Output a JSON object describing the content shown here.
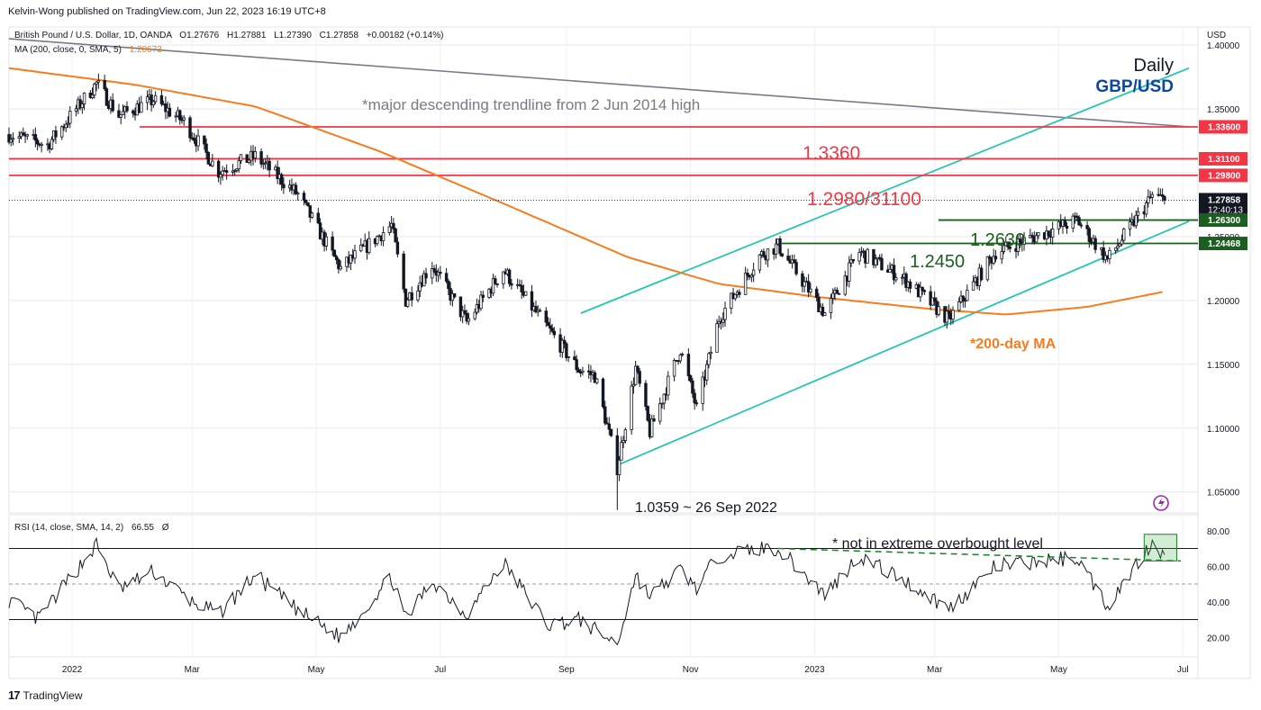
{
  "header": {
    "published_by": "Kelvin-Wong published on TradingView.com, Jun 22, 2023 16:19 UTC+8",
    "symbol_line": "British Pound / U.S. Dollar, 1D, OANDA",
    "ohlc": {
      "o": "O1.27676",
      "h": "H1.27881",
      "l": "L1.27390",
      "c": "C1.27858",
      "chg": "+0.00182 (+0.14%)"
    },
    "ma_line": "MA (200, close, 0, SMA, 5)",
    "ma_value": "1.20673",
    "currency": "USD"
  },
  "footer": {
    "brand": "TradingView",
    "logo_glyph": "17"
  },
  "colors": {
    "up": "#ffffff",
    "down": "#131722",
    "ma": "#f57c1f",
    "resistance": "#f23645",
    "support": "#1b5e20",
    "channel": "#26c6b0",
    "trendline": "#787b86",
    "rsi": "#131722",
    "price_tag": "#131722",
    "grid": "#e6e7eb",
    "annotation_red": "#f23645",
    "annotation_blue": "#0d47a1"
  },
  "chart_data": [
    {
      "type": "candlestick",
      "title": "Daily",
      "subtitle": "GBP/USD",
      "y_axis_labels": [
        "1.40000",
        "1.35000",
        "1.30000",
        "1.25000",
        "1.20000",
        "1.15000",
        "1.10000",
        "1.05000"
      ],
      "ylim": [
        1.035,
        1.41
      ],
      "x_axis_labels": [
        "2022",
        "Mar",
        "May",
        "Jul",
        "Sep",
        "Nov",
        "2023",
        "Mar",
        "May",
        "Jul"
      ],
      "price_tags": [
        {
          "label": "1.33600",
          "value": 1.336,
          "color": "#f23645"
        },
        {
          "label": "1.31100",
          "value": 1.311,
          "color": "#f23645"
        },
        {
          "label": "1.29800",
          "value": 1.298,
          "color": "#f23645"
        },
        {
          "label": "1.27858",
          "value": 1.27858,
          "color": "#131722",
          "sub": "12:40:13"
        },
        {
          "label": "1.26300",
          "value": 1.263,
          "color": "#1b5e20"
        },
        {
          "label": "1.24468",
          "value": 1.24468,
          "color": "#1b5e20"
        }
      ],
      "levels": [
        {
          "name": "resistance-1.3360",
          "value": 1.336,
          "label": "1.3360",
          "color": "#f23645"
        },
        {
          "name": "resistance-1.3110",
          "value": 1.311,
          "label": "",
          "color": "#f23645"
        },
        {
          "name": "resistance-1.2980",
          "value": 1.298,
          "label": "1.2980/31100",
          "color": "#f23645"
        },
        {
          "name": "support-1.2630",
          "value": 1.263,
          "label": "1.2630",
          "color": "#1b5e20"
        },
        {
          "name": "support-1.2450",
          "value": 1.2447,
          "label": "1.2450",
          "color": "#1b5e20"
        }
      ],
      "annotations": [
        {
          "text": "*major descending trendline from 2 Jun 2014 high",
          "color": "#787b86"
        },
        {
          "text": "*200-day MA",
          "color": "#f57c1f"
        },
        {
          "text": "1.0359 ~ 26 Sep 2022",
          "color": "#131722"
        }
      ],
      "anchor_points": [
        {
          "date": "2021-12-01",
          "close": 1.33
        },
        {
          "date": "2021-12-20",
          "close": 1.322
        },
        {
          "date": "2022-01-13",
          "close": 1.37
        },
        {
          "date": "2022-01-24",
          "close": 1.345
        },
        {
          "date": "2022-02-10",
          "close": 1.357
        },
        {
          "date": "2022-02-25",
          "close": 1.34
        },
        {
          "date": "2022-03-14",
          "close": 1.301
        },
        {
          "date": "2022-04-01",
          "close": 1.313
        },
        {
          "date": "2022-04-22",
          "close": 1.283
        },
        {
          "date": "2022-05-13",
          "close": 1.225
        },
        {
          "date": "2022-06-07",
          "close": 1.259
        },
        {
          "date": "2022-06-14",
          "close": 1.2
        },
        {
          "date": "2022-06-27",
          "close": 1.228
        },
        {
          "date": "2022-07-14",
          "close": 1.183
        },
        {
          "date": "2022-08-01",
          "close": 1.224
        },
        {
          "date": "2022-08-23",
          "close": 1.178
        },
        {
          "date": "2022-09-07",
          "close": 1.146
        },
        {
          "date": "2022-09-15",
          "close": 1.141
        },
        {
          "date": "2022-09-26",
          "close": 1.069
        },
        {
          "date": "2022-10-05",
          "close": 1.147
        },
        {
          "date": "2022-10-12",
          "close": 1.097
        },
        {
          "date": "2022-10-27",
          "close": 1.162
        },
        {
          "date": "2022-11-04",
          "close": 1.115
        },
        {
          "date": "2022-11-15",
          "close": 1.186
        },
        {
          "date": "2022-12-05",
          "close": 1.235
        },
        {
          "date": "2022-12-14",
          "close": 1.243
        },
        {
          "date": "2023-01-06",
          "close": 1.19
        },
        {
          "date": "2023-01-23",
          "close": 1.238
        },
        {
          "date": "2023-02-14",
          "close": 1.217
        },
        {
          "date": "2023-03-08",
          "close": 1.185
        },
        {
          "date": "2023-03-31",
          "close": 1.238
        },
        {
          "date": "2023-05-10",
          "close": 1.263
        },
        {
          "date": "2023-05-25",
          "close": 1.232
        },
        {
          "date": "2023-06-16",
          "close": 1.282
        },
        {
          "date": "2023-06-22",
          "close": 1.2786
        }
      ],
      "ma_200": [
        {
          "date": "2021-12-01",
          "value": 1.382
        },
        {
          "date": "2022-02-01",
          "value": 1.369
        },
        {
          "date": "2022-04-01",
          "value": 1.352
        },
        {
          "date": "2022-06-01",
          "value": 1.317
        },
        {
          "date": "2022-08-01",
          "value": 1.276
        },
        {
          "date": "2022-10-01",
          "value": 1.234
        },
        {
          "date": "2022-11-15",
          "value": 1.213
        },
        {
          "date": "2023-01-01",
          "value": 1.203
        },
        {
          "date": "2023-03-01",
          "value": 1.193
        },
        {
          "date": "2023-04-05",
          "value": 1.189
        },
        {
          "date": "2023-05-15",
          "value": 1.195
        },
        {
          "date": "2023-06-22",
          "value": 1.207
        }
      ],
      "channel": {
        "lower": [
          {
            "date": "2022-09-26",
            "value": 1.071
          },
          {
            "date": "2023-07-04",
            "value": 1.262
          }
        ],
        "upper": [
          {
            "date": "2022-09-08",
            "value": 1.19
          },
          {
            "date": "2023-07-04",
            "value": 1.382
          }
        ]
      },
      "trendline": [
        {
          "date": "2021-12-01",
          "value": 1.405
        },
        {
          "date": "2023-07-04",
          "value": 1.336
        }
      ]
    },
    {
      "type": "line",
      "title": "RSI (14, close, SMA, 14, 2)",
      "last_value": "66.55",
      "extra_glyph": "Ø",
      "y_axis_labels": [
        "80.00",
        "60.00",
        "40.00",
        "20.00"
      ],
      "ylim": [
        10,
        88
      ],
      "bands": [
        70,
        50,
        30
      ],
      "annotations": [
        {
          "text": "* not in extreme overbought level",
          "color": "#131722"
        }
      ],
      "anchor_points": [
        {
          "date": "2021-12-01",
          "value": 41
        },
        {
          "date": "2021-12-15",
          "value": 30
        },
        {
          "date": "2022-01-13",
          "value": 72
        },
        {
          "date": "2022-01-24",
          "value": 47
        },
        {
          "date": "2022-02-10",
          "value": 57
        },
        {
          "date": "2022-03-01",
          "value": 40
        },
        {
          "date": "2022-03-14",
          "value": 33
        },
        {
          "date": "2022-04-01",
          "value": 55
        },
        {
          "date": "2022-04-22",
          "value": 35
        },
        {
          "date": "2022-05-13",
          "value": 20
        },
        {
          "date": "2022-06-07",
          "value": 54
        },
        {
          "date": "2022-06-14",
          "value": 30
        },
        {
          "date": "2022-06-27",
          "value": 52
        },
        {
          "date": "2022-07-14",
          "value": 33
        },
        {
          "date": "2022-08-01",
          "value": 62
        },
        {
          "date": "2022-08-23",
          "value": 27
        },
        {
          "date": "2022-09-07",
          "value": 30
        },
        {
          "date": "2022-09-26",
          "value": 16
        },
        {
          "date": "2022-10-05",
          "value": 55
        },
        {
          "date": "2022-10-12",
          "value": 43
        },
        {
          "date": "2022-10-27",
          "value": 58
        },
        {
          "date": "2022-11-04",
          "value": 48
        },
        {
          "date": "2022-11-15",
          "value": 66
        },
        {
          "date": "2022-12-05",
          "value": 70
        },
        {
          "date": "2022-12-14",
          "value": 70
        },
        {
          "date": "2023-01-06",
          "value": 44
        },
        {
          "date": "2023-01-23",
          "value": 66
        },
        {
          "date": "2023-02-14",
          "value": 52
        },
        {
          "date": "2023-03-08",
          "value": 36
        },
        {
          "date": "2023-03-31",
          "value": 60
        },
        {
          "date": "2023-05-10",
          "value": 65
        },
        {
          "date": "2023-05-25",
          "value": 38
        },
        {
          "date": "2023-06-16",
          "value": 74
        },
        {
          "date": "2023-06-22",
          "value": 66.55
        }
      ],
      "divergence_line": [
        {
          "date": "2022-12-14",
          "value": 70
        },
        {
          "date": "2023-06-30",
          "value": 63
        }
      ]
    }
  ]
}
